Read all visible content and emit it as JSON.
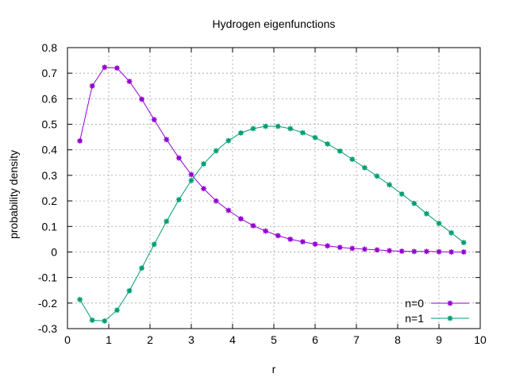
{
  "chart_data": {
    "type": "line",
    "title": "Hydrogen eigenfunctions",
    "xlabel": "r",
    "ylabel": "probability density",
    "xlim": [
      0,
      10
    ],
    "ylim": [
      -0.3,
      0.8
    ],
    "xticks": [
      0,
      1,
      2,
      3,
      4,
      5,
      6,
      7,
      8,
      9,
      10
    ],
    "yticks": [
      -0.3,
      -0.2,
      -0.1,
      0,
      0.1,
      0.2,
      0.3,
      0.4,
      0.5,
      0.6,
      0.7,
      0.8
    ],
    "x_tick_labels": [
      "0",
      "1",
      "2",
      "3",
      "4",
      "5",
      "6",
      "7",
      "8",
      "9",
      "10"
    ],
    "y_tick_labels": [
      "-0.3",
      "-0.2",
      "-0.1",
      "0",
      "0.1",
      "0.2",
      "0.3",
      "0.4",
      "0.5",
      "0.6",
      "0.7",
      "0.8"
    ],
    "grid": true,
    "legend_position": "bottom-right",
    "x": [
      0.3,
      0.6,
      0.9,
      1.2,
      1.5,
      1.8,
      2.1,
      2.4,
      2.7,
      3.0,
      3.3,
      3.6,
      3.9,
      4.2,
      4.5,
      4.8,
      5.1,
      5.4,
      5.7,
      6.0,
      6.3,
      6.6,
      6.9,
      7.2,
      7.5,
      7.8,
      8.1,
      8.4,
      8.7,
      9.0,
      9.3,
      9.6
    ],
    "series": [
      {
        "name": "n=0",
        "color": "#9400d3",
        "values": [
          0.435,
          0.65,
          0.723,
          0.72,
          0.668,
          0.598,
          0.518,
          0.44,
          0.368,
          0.303,
          0.248,
          0.2,
          0.163,
          0.13,
          0.103,
          0.082,
          0.064,
          0.05,
          0.04,
          0.031,
          0.024,
          0.018,
          0.014,
          0.011,
          0.008,
          0.005,
          0.003,
          0.002,
          0.002,
          0.001,
          0.0,
          0.0
        ]
      },
      {
        "name": "n=1",
        "color": "#009e73",
        "values": [
          -0.186,
          -0.267,
          -0.27,
          -0.228,
          -0.152,
          -0.063,
          0.03,
          0.12,
          0.205,
          0.28,
          0.345,
          0.396,
          0.436,
          0.466,
          0.483,
          0.492,
          0.492,
          0.483,
          0.467,
          0.448,
          0.423,
          0.395,
          0.363,
          0.33,
          0.297,
          0.263,
          0.227,
          0.19,
          0.15,
          0.112,
          0.075,
          0.037
        ]
      }
    ]
  }
}
